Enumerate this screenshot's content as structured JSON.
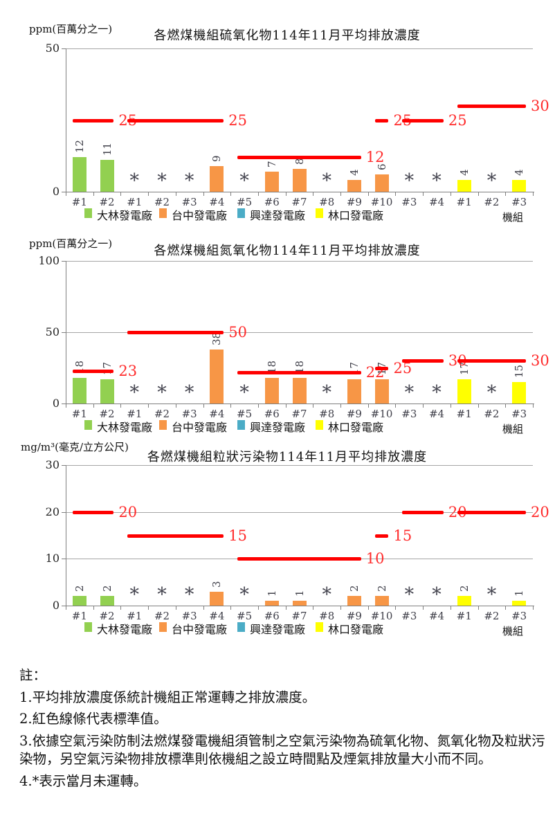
{
  "legend": {
    "plants": [
      {
        "name": "大林發電廠",
        "color": "#92D050"
      },
      {
        "name": "台中發電廠",
        "color": "#F79646"
      },
      {
        "name": "興達發電廠",
        "color": "#4BACC6"
      },
      {
        "name": "林口發電廠",
        "color": "#FFFF00"
      }
    ],
    "axis_label": "機組"
  },
  "colors": {
    "standard_line": "#FF0000",
    "standard_label": "#FF2B2B",
    "axis": "#7F7F7F",
    "gridline": "#A6A6A6",
    "text": "#111111",
    "value_label": "#40404A"
  },
  "chart_data": [
    {
      "type": "bar",
      "title": "各燃煤機組硫氧化物114年11月平均排放濃度",
      "ylabel": "ppm(百萬分之一)",
      "xlabel": "機組",
      "ylim": [
        0,
        50
      ],
      "yticks": [
        0,
        50
      ],
      "grid": true,
      "categories": [
        "#1",
        "#2",
        "#1",
        "#2",
        "#3",
        "#4",
        "#5",
        "#6",
        "#7",
        "#8",
        "#9",
        "#10",
        "#3",
        "#4",
        "#1",
        "#2",
        "#3"
      ],
      "plant_of_category": [
        "大林發電廠",
        "大林發電廠",
        "台中發電廠",
        "台中發電廠",
        "台中發電廠",
        "台中發電廠",
        "台中發電廠",
        "台中發電廠",
        "台中發電廠",
        "台中發電廠",
        "台中發電廠",
        "台中發電廠",
        "興達發電廠",
        "興達發電廠",
        "林口發電廠",
        "林口發電廠",
        "林口發電廠"
      ],
      "values": [
        12,
        11,
        null,
        null,
        null,
        9,
        null,
        7,
        8,
        null,
        4,
        6,
        null,
        null,
        4,
        null,
        4
      ],
      "not_operating_marker": "*",
      "standard_lines": [
        {
          "value": 25,
          "from_index": 0,
          "to_index": 1,
          "label": "25"
        },
        {
          "value": 25,
          "from_index": 2,
          "to_index": 5,
          "label": "25"
        },
        {
          "value": 12,
          "from_index": 6,
          "to_index": 10,
          "label": "12"
        },
        {
          "value": 25,
          "from_index": 11,
          "to_index": 11,
          "label": "25"
        },
        {
          "value": 25,
          "from_index": 12,
          "to_index": 13,
          "label": "25"
        },
        {
          "value": 30,
          "from_index": 14,
          "to_index": 16,
          "label": "30"
        }
      ]
    },
    {
      "type": "bar",
      "title": "各燃煤機組氮氧化物114年11月平均排放濃度",
      "ylabel": "ppm(百萬分之一)",
      "xlabel": "機組",
      "ylim": [
        0,
        100
      ],
      "yticks": [
        0,
        50,
        100
      ],
      "grid": true,
      "categories": [
        "#1",
        "#2",
        "#1",
        "#2",
        "#3",
        "#4",
        "#5",
        "#6",
        "#7",
        "#8",
        "#9",
        "#10",
        "#3",
        "#4",
        "#1",
        "#2",
        "#3"
      ],
      "plant_of_category": [
        "大林發電廠",
        "大林發電廠",
        "台中發電廠",
        "台中發電廠",
        "台中發電廠",
        "台中發電廠",
        "台中發電廠",
        "台中發電廠",
        "台中發電廠",
        "台中發電廠",
        "台中發電廠",
        "台中發電廠",
        "興達發電廠",
        "興達發電廠",
        "林口發電廠",
        "林口發電廠",
        "林口發電廠"
      ],
      "values": [
        18,
        17,
        null,
        null,
        null,
        38,
        null,
        18,
        18,
        null,
        17,
        17,
        null,
        null,
        17,
        null,
        15
      ],
      "not_operating_marker": "*",
      "standard_lines": [
        {
          "value": 23,
          "from_index": 0,
          "to_index": 1,
          "label": "23"
        },
        {
          "value": 50,
          "from_index": 2,
          "to_index": 5,
          "label": "50"
        },
        {
          "value": 22,
          "from_index": 6,
          "to_index": 10,
          "label": "22"
        },
        {
          "value": 25,
          "from_index": 11,
          "to_index": 11,
          "label": "25"
        },
        {
          "value": 30,
          "from_index": 12,
          "to_index": 13,
          "label": "30"
        },
        {
          "value": 30,
          "from_index": 14,
          "to_index": 16,
          "label": "30"
        }
      ]
    },
    {
      "type": "bar",
      "title": "各燃煤機組粒狀污染物114年11月平均排放濃度",
      "ylabel": "mg/m³(毫克/立方公尺)",
      "xlabel": "機組",
      "ylim": [
        0,
        30
      ],
      "yticks": [
        0,
        10,
        20,
        30
      ],
      "grid": true,
      "categories": [
        "#1",
        "#2",
        "#1",
        "#2",
        "#3",
        "#4",
        "#5",
        "#6",
        "#7",
        "#8",
        "#9",
        "#10",
        "#3",
        "#4",
        "#1",
        "#2",
        "#3"
      ],
      "plant_of_category": [
        "大林發電廠",
        "大林發電廠",
        "台中發電廠",
        "台中發電廠",
        "台中發電廠",
        "台中發電廠",
        "台中發電廠",
        "台中發電廠",
        "台中發電廠",
        "台中發電廠",
        "台中發電廠",
        "台中發電廠",
        "興達發電廠",
        "興達發電廠",
        "林口發電廠",
        "林口發電廠",
        "林口發電廠"
      ],
      "values": [
        2,
        2,
        null,
        null,
        null,
        3,
        null,
        1,
        1,
        null,
        2,
        2,
        null,
        null,
        2,
        null,
        1
      ],
      "not_operating_marker": "*",
      "standard_lines": [
        {
          "value": 20,
          "from_index": 0,
          "to_index": 1,
          "label": "20"
        },
        {
          "value": 15,
          "from_index": 2,
          "to_index": 5,
          "label": "15"
        },
        {
          "value": 10,
          "from_index": 6,
          "to_index": 10,
          "label": "10"
        },
        {
          "value": 15,
          "from_index": 11,
          "to_index": 11,
          "label": "15"
        },
        {
          "value": 20,
          "from_index": 12,
          "to_index": 13,
          "label": "20"
        },
        {
          "value": 20,
          "from_index": 14,
          "to_index": 16,
          "label": "20"
        }
      ]
    }
  ],
  "notes": {
    "header": "註：",
    "items": [
      "1.平均排放濃度係統計機組正常運轉之排放濃度。",
      "2.紅色線條代表標準值。",
      "3.依據空氣污染防制法燃煤發電機組須管制之空氣污染物為硫氧化物、氮氧化物及粒狀污染物，另空氣污染物排放標準則依機組之設立時間點及煙氣排放量大小而不同。",
      "4.*表示當月未運轉。"
    ]
  }
}
